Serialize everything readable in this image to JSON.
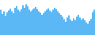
{
  "chart_data": {
    "type": "bar",
    "categories": [
      null,
      null,
      null,
      null,
      null,
      null,
      null,
      null,
      null,
      null,
      null,
      null,
      null,
      null,
      null,
      null,
      null,
      null,
      null,
      null,
      null,
      null,
      null,
      null,
      null,
      null,
      null,
      null,
      null,
      null,
      null,
      null,
      null,
      null,
      null,
      null,
      null,
      null,
      null,
      null,
      null,
      null,
      null,
      null,
      null,
      null,
      null,
      null,
      null,
      null,
      null,
      null,
      null,
      null,
      null,
      null,
      null,
      null,
      null,
      null
    ],
    "values": [
      72,
      60,
      68,
      55,
      65,
      70,
      75,
      68,
      62,
      78,
      82,
      72,
      68,
      74,
      85,
      78,
      88,
      82,
      72,
      68,
      72,
      76,
      80,
      74,
      68,
      64,
      58,
      62,
      68,
      72,
      76,
      70,
      66,
      72,
      78,
      74,
      68,
      62,
      58,
      52,
      45,
      38,
      50,
      56,
      44,
      40,
      48,
      42,
      52,
      58,
      50,
      44,
      48,
      42,
      36,
      32,
      40,
      46,
      65,
      72
    ],
    "color": "#5bb8f5",
    "ylim": [
      0,
      100
    ],
    "grid": false,
    "tick_labels": false
  }
}
